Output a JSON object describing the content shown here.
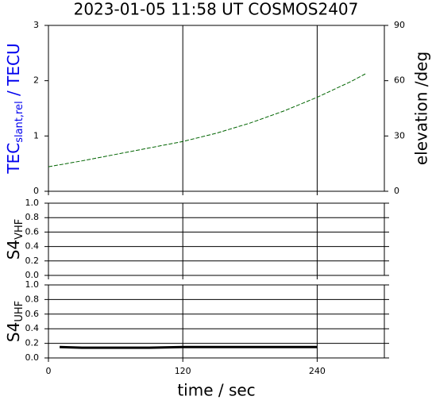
{
  "chart_data": [
    {
      "type": "line",
      "title": "2023-01-05 11:58 UT   COSMOS2407",
      "ylabel": "TEC",
      "ylabel_sub": "slant,rel",
      "ylabel_suffix": " / TECU",
      "ylabel_color": "#0000ee",
      "y2label": "elevation /deg",
      "y2label_color": "#006400",
      "xlim": [
        0,
        300
      ],
      "xticks": [
        0,
        120,
        240
      ],
      "ylim": [
        0,
        3
      ],
      "yticks": [
        0,
        1,
        2,
        3
      ],
      "y2lim": [
        0,
        90
      ],
      "y2ticks": [
        0,
        30,
        60,
        90
      ],
      "grid": true,
      "series": [
        {
          "color": "#006400",
          "axis": "y2",
          "dashed": true,
          "x": [
            0,
            30,
            60,
            90,
            120,
            150,
            180,
            210,
            240,
            270,
            284
          ],
          "values": [
            13.3,
            16.5,
            20,
            23.5,
            27,
            31.5,
            37,
            43.5,
            51,
            59.5,
            64
          ]
        }
      ]
    },
    {
      "type": "line",
      "ylabel": "S4",
      "ylabel_sub": "VHF",
      "xlim": [
        0,
        300
      ],
      "xticks": [
        0,
        120,
        240
      ],
      "ylim": [
        0,
        1
      ],
      "yticks": [
        {
          "value": 0,
          "label": "0.0"
        },
        0.2,
        0.4,
        0.6,
        0.8,
        {
          "value": 1,
          "label": "1.0"
        }
      ],
      "grid": true,
      "series": []
    },
    {
      "type": "line",
      "ylabel": "S4",
      "ylabel_sub": "UHF",
      "xlabel": "time / sec",
      "xlim": [
        0,
        300
      ],
      "xticks": [
        0,
        120,
        240
      ],
      "show_xtick_labels": true,
      "ylim": [
        0,
        1
      ],
      "yticks": [
        {
          "value": 0,
          "label": "0.0"
        },
        0.2,
        0.4,
        0.6,
        0.8,
        {
          "value": 1,
          "label": "1.0"
        }
      ],
      "grid": true,
      "series": [
        {
          "color": "#000000",
          "thick": true,
          "x": [
            10,
            30,
            60,
            90,
            120,
            150,
            180,
            210,
            240
          ],
          "values": [
            0.15,
            0.14,
            0.14,
            0.14,
            0.15,
            0.15,
            0.15,
            0.15,
            0.15
          ]
        }
      ]
    }
  ]
}
